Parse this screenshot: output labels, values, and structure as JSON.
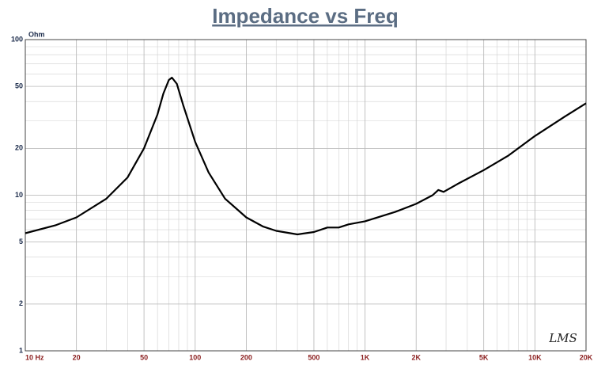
{
  "chart_data": {
    "type": "line",
    "title": "Impedance vs Freq",
    "y_label": "Ohm",
    "watermark": "LMS",
    "x_scale": "log",
    "y_scale": "log",
    "grid": true,
    "xlim": [
      10,
      20000
    ],
    "ylim": [
      1,
      100
    ],
    "xticks": [
      {
        "value": 10,
        "label": "10 Hz"
      },
      20,
      50,
      100,
      200,
      500,
      {
        "value": 1000,
        "label": "1K"
      },
      {
        "value": 2000,
        "label": "2K"
      },
      {
        "value": 5000,
        "label": "5K"
      },
      {
        "value": 10000,
        "label": "10K"
      },
      {
        "value": 20000,
        "label": "20K"
      }
    ],
    "yticks": [
      1,
      2,
      5,
      10,
      20,
      50,
      100
    ],
    "x": [
      10,
      15,
      20,
      30,
      40,
      50,
      60,
      65,
      70,
      73,
      78,
      85,
      100,
      120,
      150,
      200,
      250,
      300,
      400,
      500,
      600,
      700,
      800,
      1000,
      1500,
      2000,
      2500,
      2700,
      2900,
      3500,
      5000,
      7000,
      10000,
      15000,
      20000
    ],
    "series": [
      {
        "name": "Impedance",
        "color": "#000000",
        "values": [
          5.7,
          6.4,
          7.2,
          9.5,
          13,
          20,
          33,
          45,
          55,
          57,
          52,
          38,
          22,
          14,
          9.5,
          7.2,
          6.3,
          5.9,
          5.6,
          5.8,
          6.2,
          6.2,
          6.5,
          6.8,
          7.8,
          8.8,
          10,
          10.8,
          10.5,
          11.8,
          14.5,
          18,
          24,
          32,
          39
        ]
      }
    ]
  }
}
